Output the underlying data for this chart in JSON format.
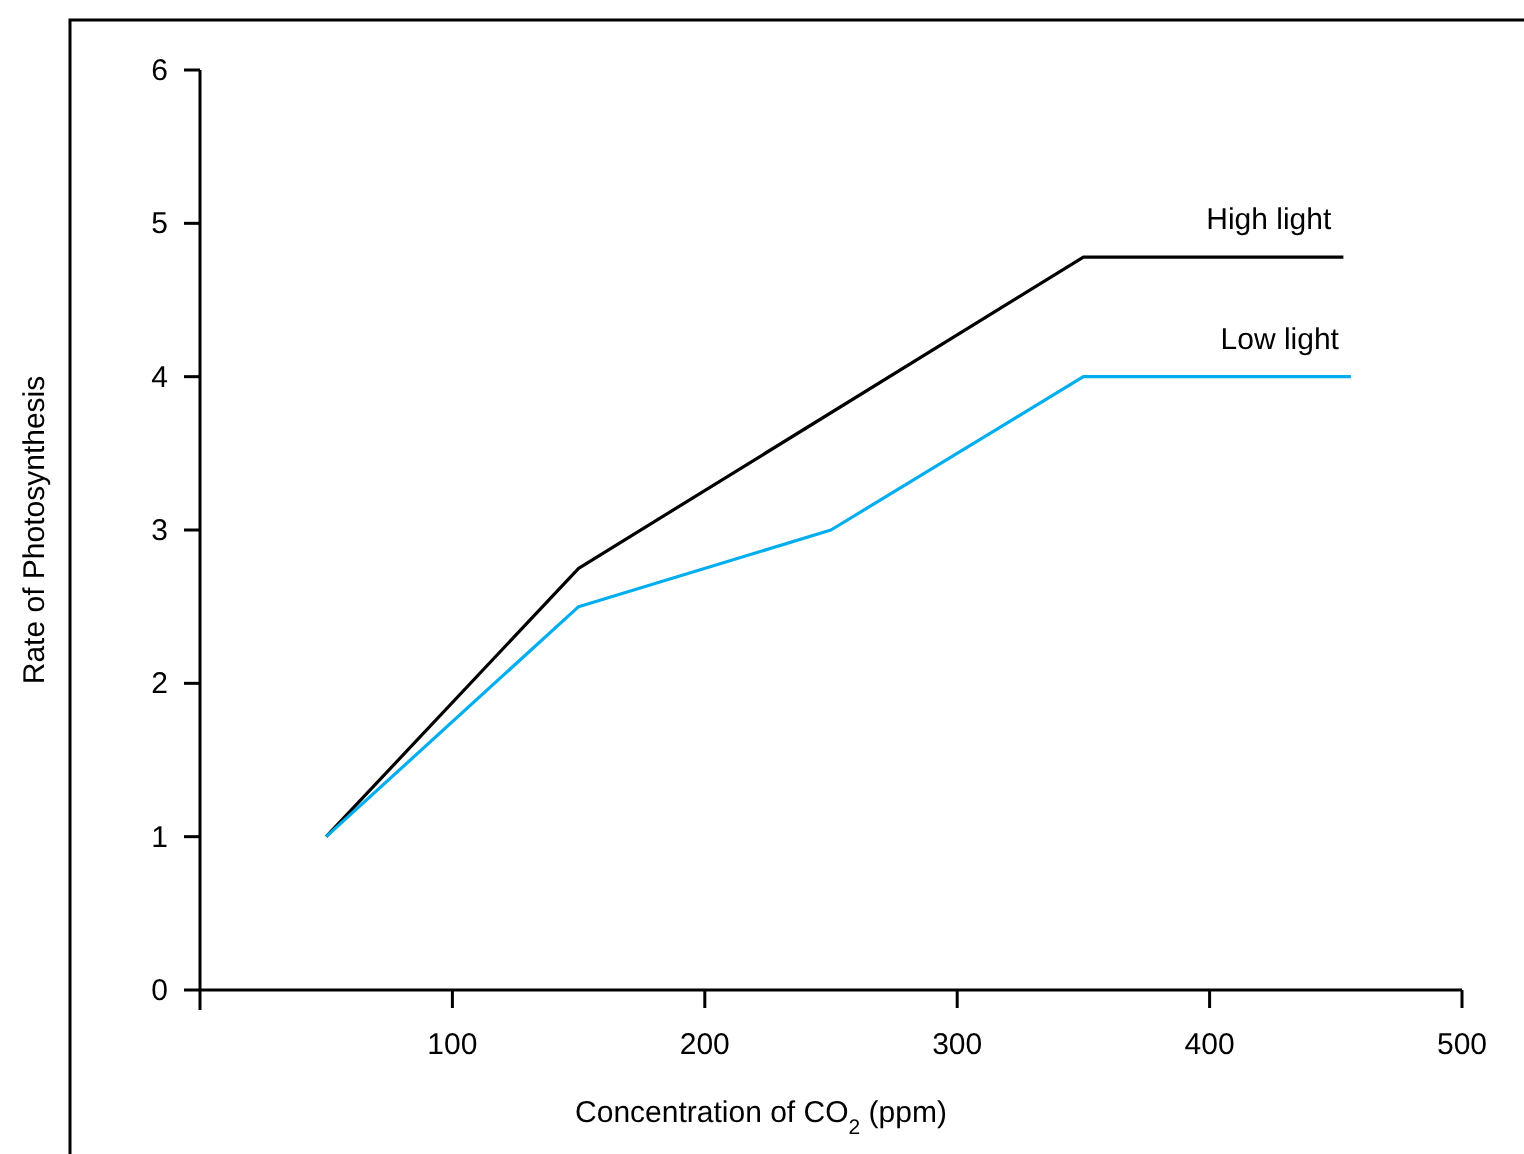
{
  "chart_data": {
    "type": "line",
    "xlabel": "Concentration of CO$_{2}$ (ppm)",
    "ylabel": "Rate of Photosynthesis",
    "series": [
      {
        "name": "High light",
        "color": "#000000",
        "x": [
          50,
          150,
          350,
          453
        ],
        "values": [
          1,
          2.75,
          4.78,
          4.78
        ]
      },
      {
        "name": "Low light",
        "color": "#00aeef",
        "x": [
          50,
          150,
          250,
          350,
          456
        ],
        "values": [
          1,
          2.5,
          3,
          4,
          4
        ]
      }
    ],
    "xlim": [
      0,
      500
    ],
    "xticks": [
      100,
      200,
      300,
      400,
      500
    ],
    "ylim": [
      0,
      6
    ],
    "yticks": [
      0,
      1,
      2,
      3,
      4,
      5,
      6
    ],
    "marker": "none",
    "line_style": "solid"
  }
}
